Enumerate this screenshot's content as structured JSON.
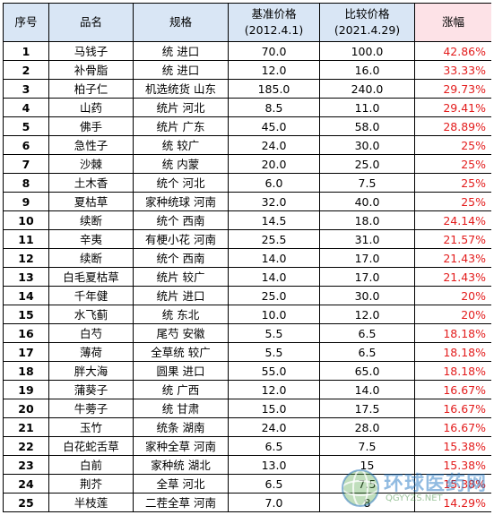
{
  "headers": {
    "index": "序号",
    "name": "品名",
    "spec": "规格",
    "base_price_line1": "基准价格",
    "base_price_line2": "(2012.4.1)",
    "compare_price_line1": "比较价格",
    "compare_price_line2": "(2021.4.29)",
    "increase": "涨幅"
  },
  "colors": {
    "header_bg": "#d9e6f5",
    "increase_header_bg": "#fde2e7",
    "increase_text": "#e31c1c"
  },
  "rows": [
    {
      "index": "1",
      "name": "马钱子",
      "spec": "统 进口",
      "base": "70.0",
      "compare": "100.0",
      "increase": "42.86%"
    },
    {
      "index": "2",
      "name": "补骨脂",
      "spec": "统 进口",
      "base": "12.0",
      "compare": "16.0",
      "increase": "33.33%"
    },
    {
      "index": "3",
      "name": "柏子仁",
      "spec": "机选统货 山东",
      "base": "185.0",
      "compare": "240.0",
      "increase": "29.73%"
    },
    {
      "index": "4",
      "name": "山药",
      "spec": "统片 河北",
      "base": "8.5",
      "compare": "11.0",
      "increase": "29.41%"
    },
    {
      "index": "5",
      "name": "佛手",
      "spec": "统片 广东",
      "base": "45.0",
      "compare": "58.0",
      "increase": "28.89%"
    },
    {
      "index": "6",
      "name": "急性子",
      "spec": "统 较广",
      "base": "24.0",
      "compare": "30.0",
      "increase": "25%"
    },
    {
      "index": "7",
      "name": "沙棘",
      "spec": "统 内蒙",
      "base": "20.0",
      "compare": "25.0",
      "increase": "25%"
    },
    {
      "index": "8",
      "name": "土木香",
      "spec": "统个 河北",
      "base": "6.0",
      "compare": "7.5",
      "increase": "25%"
    },
    {
      "index": "9",
      "name": "夏枯草",
      "spec": "家种统球 河南",
      "base": "32.0",
      "compare": "40.0",
      "increase": "25%"
    },
    {
      "index": "10",
      "name": "续断",
      "spec": "统个 西南",
      "base": "14.5",
      "compare": "18.0",
      "increase": "24.14%"
    },
    {
      "index": "11",
      "name": "辛夷",
      "spec": "有梗小花 河南",
      "base": "25.5",
      "compare": "31.0",
      "increase": "21.57%"
    },
    {
      "index": "12",
      "name": "续断",
      "spec": "统个 西南",
      "base": "14.0",
      "compare": "17.0",
      "increase": "21.43%"
    },
    {
      "index": "13",
      "name": "白毛夏枯草",
      "spec": "统片 较广",
      "base": "14.0",
      "compare": "17.0",
      "increase": "21.43%"
    },
    {
      "index": "14",
      "name": "千年健",
      "spec": "统片 进口",
      "base": "25.0",
      "compare": "30.0",
      "increase": "20%"
    },
    {
      "index": "15",
      "name": "水飞蓟",
      "spec": "统 东北",
      "base": "10.0",
      "compare": "12.0",
      "increase": "20%"
    },
    {
      "index": "16",
      "name": "白芍",
      "spec": "尾芍 安徽",
      "base": "5.5",
      "compare": "6.5",
      "increase": "18.18%"
    },
    {
      "index": "17",
      "name": "薄荷",
      "spec": "全草统 较广",
      "base": "5.5",
      "compare": "6.5",
      "increase": "18.18%"
    },
    {
      "index": "18",
      "name": "胖大海",
      "spec": "圆果 进口",
      "base": "55.0",
      "compare": "65.0",
      "increase": "18.18%"
    },
    {
      "index": "19",
      "name": "蒲葵子",
      "spec": "统 广西",
      "base": "12.0",
      "compare": "14.0",
      "increase": "16.67%"
    },
    {
      "index": "20",
      "name": "牛蒡子",
      "spec": "统 甘肃",
      "base": "15.0",
      "compare": "17.5",
      "increase": "16.67%"
    },
    {
      "index": "21",
      "name": "玉竹",
      "spec": "统条 湖南",
      "base": "24.0",
      "compare": "28.0",
      "increase": "16.67%"
    },
    {
      "index": "22",
      "name": "白花蛇舌草",
      "spec": "家种全草 河南",
      "base": "6.5",
      "compare": "7.5",
      "increase": "15.38%"
    },
    {
      "index": "23",
      "name": "白前",
      "spec": "家种统 湖北",
      "base": "13.0",
      "compare": "15",
      "increase": "15.38%"
    },
    {
      "index": "24",
      "name": "荆芥",
      "spec": "全草 河北",
      "base": "6.5",
      "compare": "7.5",
      "increase": "15.38%"
    },
    {
      "index": "25",
      "name": "半枝莲",
      "spec": "二茬全草 河南",
      "base": "7.0",
      "compare": "8",
      "increase": "14.29%"
    }
  ],
  "watermark": {
    "title": "环球医药网",
    "url": "QGYYZS.NET"
  }
}
